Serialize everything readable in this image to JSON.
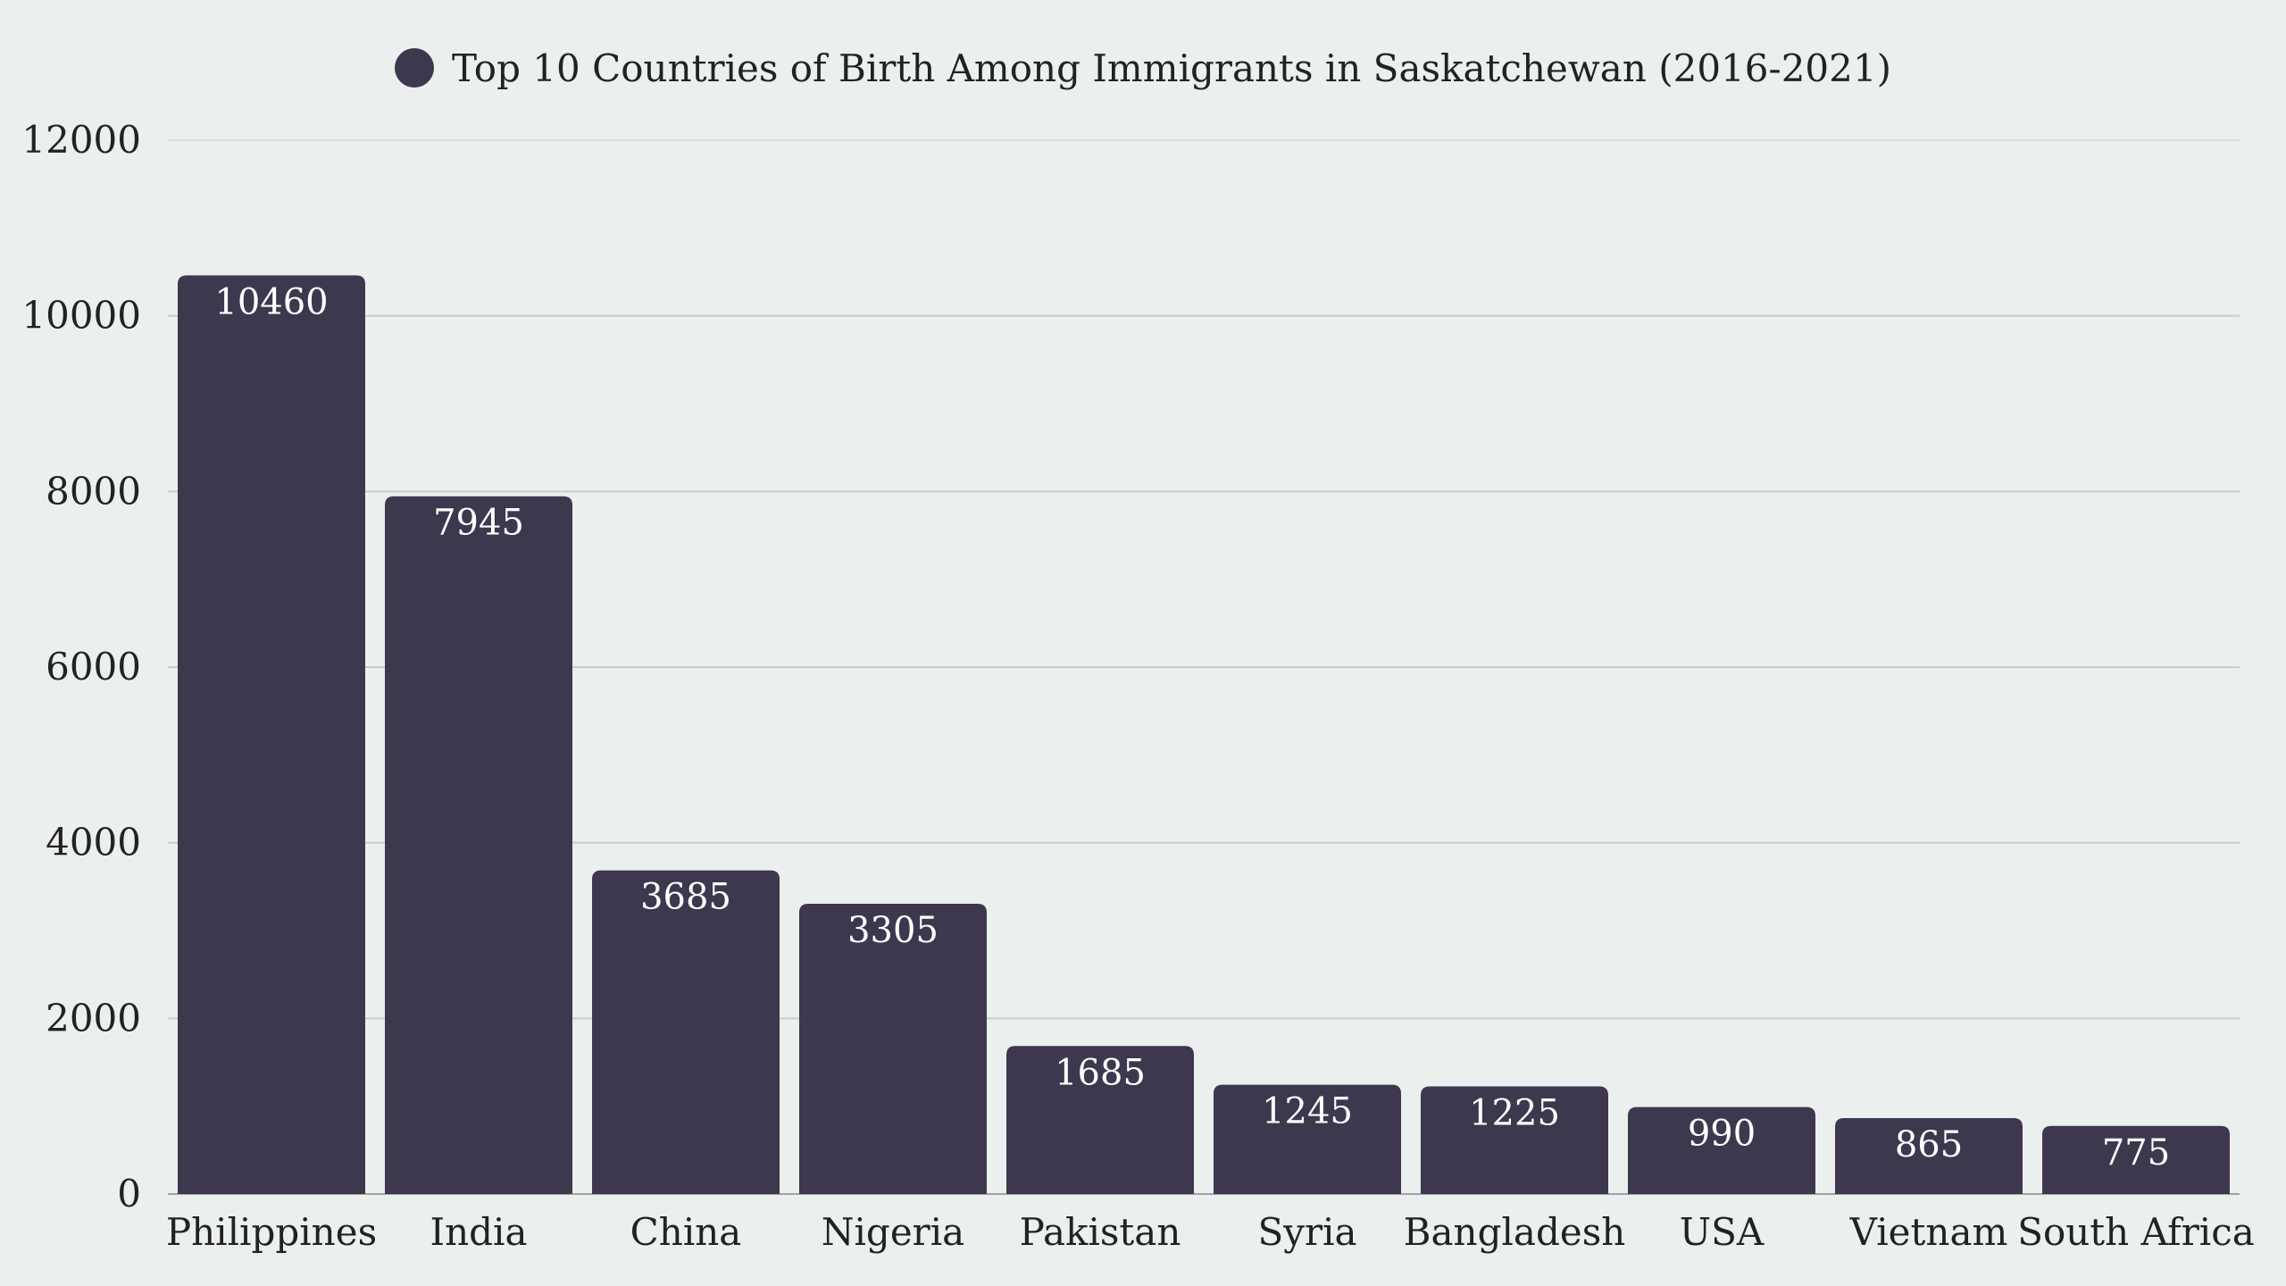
{
  "chart_data": {
    "type": "bar",
    "legend_position": "top-center",
    "grid": true,
    "series": [
      {
        "name": "Top 10 Countries of Birth Among Immigrants in Saskatchewan (2016-2021)",
        "color": "#3d384e",
        "values": [
          10460,
          7945,
          3685,
          3305,
          1685,
          1245,
          1225,
          990,
          865,
          775
        ]
      }
    ],
    "categories": [
      "Philippines",
      "India",
      "China",
      "Nigeria",
      "Pakistan",
      "Syria",
      "Bangladesh",
      "USA",
      "Vietnam",
      "South Africa"
    ],
    "data_labels": [
      "10460",
      "7945",
      "3685",
      "3305",
      "1685",
      "1245",
      "1225",
      "990",
      "865",
      "775"
    ],
    "ylim": [
      0,
      12000
    ],
    "yticks": [
      0,
      2000,
      4000,
      6000,
      8000,
      10000,
      12000
    ],
    "ytick_labels": [
      "0",
      "2000",
      "4000",
      "6000",
      "8000",
      "10000",
      "12000"
    ],
    "colors": {
      "background": "#ebefee",
      "bar": "#3d384e",
      "grid": "#c9cccc",
      "text": "#222222",
      "bar_label": "#ffffff"
    }
  }
}
